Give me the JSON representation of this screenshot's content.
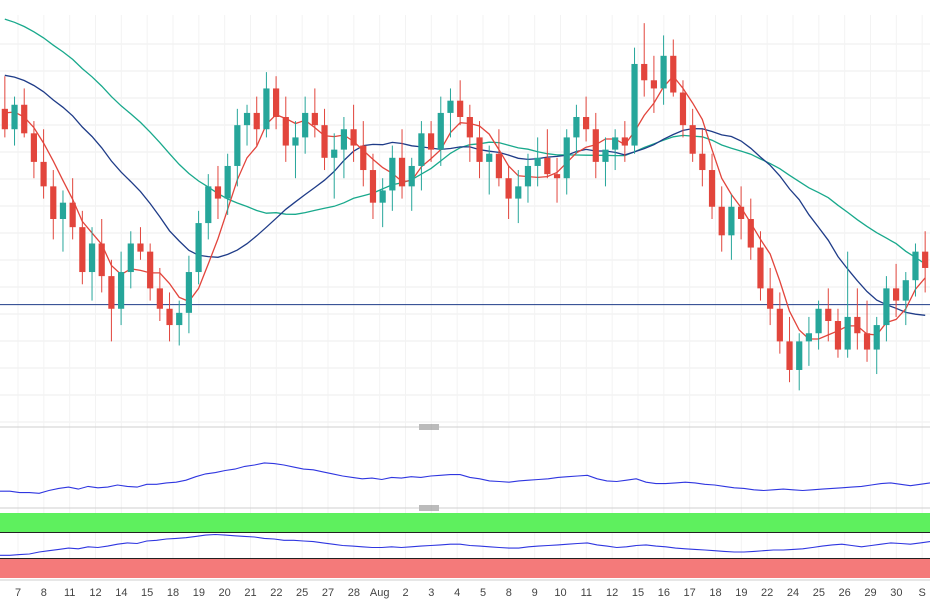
{
  "colors": {
    "up": "#26a69a",
    "down": "#e2453c",
    "sma_fast": "#e2453c",
    "sma_mid": "#1f3c88",
    "sma_slow": "#19a98c",
    "horizontal_level": "#1f3c88",
    "osc_line": "#2f36e0",
    "overbought_zone": "#5ef05e",
    "oversold_zone": "#f47a7a"
  },
  "chart_data": [
    {
      "type": "candlestick",
      "title": "",
      "xlabel": "",
      "ylabel": "",
      "x_tick_labels": [
        "7",
        "8",
        "11",
        "12",
        "14",
        "15",
        "18",
        "19",
        "20",
        "21",
        "22",
        "25",
        "27",
        "28",
        "Aug",
        "2",
        "3",
        "4",
        "5",
        "8",
        "9",
        "10",
        "11",
        "12",
        "15",
        "16",
        "17",
        "18",
        "19",
        "22",
        "24",
        "25",
        "26",
        "29",
        "30",
        "S"
      ],
      "ylim": [
        0,
        100
      ],
      "grid": true,
      "horizontal_level": 29,
      "ohlc": [
        [
          77,
          85,
          70,
          72
        ],
        [
          72,
          80,
          68,
          78
        ],
        [
          78,
          82,
          70,
          71
        ],
        [
          71,
          74,
          60,
          64
        ],
        [
          64,
          72,
          55,
          58
        ],
        [
          58,
          62,
          45,
          50
        ],
        [
          50,
          57,
          42,
          54
        ],
        [
          54,
          60,
          45,
          48
        ],
        [
          48,
          52,
          34,
          37
        ],
        [
          37,
          48,
          30,
          44
        ],
        [
          44,
          50,
          32,
          36
        ],
        [
          36,
          40,
          20,
          28
        ],
        [
          28,
          42,
          24,
          37
        ],
        [
          37,
          47,
          33,
          44
        ],
        [
          44,
          48,
          40,
          42
        ],
        [
          42,
          44,
          30,
          33
        ],
        [
          33,
          38,
          25,
          28
        ],
        [
          28,
          32,
          20,
          24
        ],
        [
          24,
          30,
          19,
          27
        ],
        [
          27,
          41,
          22,
          37
        ],
        [
          37,
          52,
          34,
          49
        ],
        [
          49,
          61,
          45,
          58
        ],
        [
          58,
          63,
          50,
          55
        ],
        [
          55,
          66,
          51,
          63
        ],
        [
          63,
          77,
          58,
          73
        ],
        [
          73,
          78,
          68,
          76
        ],
        [
          76,
          80,
          68,
          72
        ],
        [
          72,
          86,
          70,
          82
        ],
        [
          82,
          85,
          72,
          75
        ],
        [
          75,
          80,
          64,
          68
        ],
        [
          68,
          74,
          60,
          70
        ],
        [
          70,
          80,
          66,
          76
        ],
        [
          76,
          82,
          70,
          73
        ],
        [
          73,
          77,
          62,
          65
        ],
        [
          65,
          71,
          55,
          67
        ],
        [
          67,
          75,
          60,
          72
        ],
        [
          72,
          78,
          64,
          68
        ],
        [
          68,
          74,
          58,
          62
        ],
        [
          62,
          66,
          50,
          54
        ],
        [
          54,
          60,
          48,
          57
        ],
        [
          57,
          68,
          52,
          65
        ],
        [
          65,
          72,
          55,
          58
        ],
        [
          58,
          65,
          52,
          63
        ],
        [
          63,
          74,
          57,
          71
        ],
        [
          71,
          74,
          64,
          67
        ],
        [
          67,
          80,
          63,
          76
        ],
        [
          76,
          82,
          70,
          79
        ],
        [
          79,
          84,
          73,
          75
        ],
        [
          75,
          78,
          64,
          70
        ],
        [
          70,
          74,
          60,
          64
        ],
        [
          64,
          68,
          56,
          66
        ],
        [
          66,
          72,
          58,
          60
        ],
        [
          60,
          63,
          50,
          55
        ],
        [
          55,
          62,
          49,
          58
        ],
        [
          58,
          66,
          54,
          63
        ],
        [
          63,
          70,
          58,
          65
        ],
        [
          65,
          72,
          60,
          61
        ],
        [
          61,
          65,
          54,
          60
        ],
        [
          60,
          72,
          56,
          70
        ],
        [
          70,
          78,
          66,
          75
        ],
        [
          75,
          80,
          69,
          72
        ],
        [
          72,
          76,
          60,
          64
        ],
        [
          64,
          70,
          58,
          67
        ],
        [
          67,
          72,
          62,
          70
        ],
        [
          70,
          74,
          64,
          68
        ],
        [
          68,
          92,
          66,
          88
        ],
        [
          88,
          98,
          80,
          84
        ],
        [
          84,
          90,
          76,
          82
        ],
        [
          82,
          95,
          78,
          90
        ],
        [
          90,
          94,
          80,
          81
        ],
        [
          81,
          84,
          70,
          73
        ],
        [
          73,
          77,
          64,
          66
        ],
        [
          66,
          72,
          58,
          62
        ],
        [
          62,
          66,
          50,
          53
        ],
        [
          53,
          58,
          42,
          46
        ],
        [
          46,
          56,
          40,
          53
        ],
        [
          53,
          58,
          45,
          50
        ],
        [
          50,
          55,
          40,
          43
        ],
        [
          43,
          47,
          30,
          33
        ],
        [
          33,
          38,
          24,
          28
        ],
        [
          28,
          32,
          17,
          20
        ],
        [
          20,
          26,
          10,
          13
        ],
        [
          13,
          22,
          8,
          20
        ],
        [
          20,
          26,
          14,
          22
        ],
        [
          22,
          30,
          18,
          28
        ],
        [
          28,
          33,
          20,
          25
        ],
        [
          25,
          28,
          16,
          18
        ],
        [
          18,
          42,
          16,
          26
        ],
        [
          26,
          33,
          18,
          22
        ],
        [
          22,
          30,
          15,
          18
        ],
        [
          18,
          26,
          12,
          24
        ],
        [
          24,
          36,
          20,
          33
        ],
        [
          33,
          39,
          26,
          30
        ],
        [
          30,
          37,
          24,
          35
        ],
        [
          35,
          44,
          31,
          42
        ],
        [
          42,
          47,
          32,
          38
        ]
      ],
      "x_axis_dates_shown": "7 … 30 S (daily sessions, July → August)"
    },
    {
      "type": "line",
      "title": "",
      "series": [
        {
          "name": "",
          "values": [
            20,
            20,
            18,
            18,
            17,
            21,
            24,
            26,
            23,
            27,
            25,
            26,
            29,
            27,
            26,
            30,
            30,
            32,
            33,
            36,
            41,
            45,
            47,
            50,
            52,
            56,
            58,
            61,
            60,
            58,
            55,
            52,
            51,
            48,
            45,
            42,
            40,
            38,
            39,
            37,
            40,
            39,
            41,
            40,
            42,
            43,
            44,
            44,
            40,
            38,
            35,
            34,
            33,
            35,
            36,
            37,
            38,
            40,
            41,
            42,
            43,
            38,
            35,
            34,
            36,
            38,
            33,
            31,
            31,
            32,
            33,
            32,
            30,
            29,
            27,
            25,
            24,
            22,
            21,
            22,
            23,
            22,
            21,
            22,
            23,
            24,
            25,
            26,
            27,
            29,
            31,
            32,
            30,
            28,
            30,
            32
          ]
        }
      ]
    },
    {
      "type": "line",
      "title": "",
      "series": [
        {
          "name": "",
          "values": [
            35,
            35,
            36,
            37,
            40,
            42,
            44,
            46,
            45,
            48,
            47,
            49,
            52,
            54,
            53,
            57,
            58,
            60,
            61,
            62,
            64,
            66,
            67,
            66,
            65,
            64,
            63,
            61,
            60,
            58,
            58,
            57,
            56,
            54,
            52,
            50,
            49,
            48,
            47,
            47,
            48,
            47,
            48,
            49,
            50,
            51,
            52,
            52,
            50,
            49,
            48,
            47,
            46,
            46,
            48,
            49,
            50,
            51,
            52,
            53,
            54,
            51,
            49,
            47,
            48,
            50,
            51,
            49,
            48,
            46,
            45,
            44,
            43,
            42,
            41,
            40,
            40,
            41,
            42,
            43,
            43,
            44,
            45,
            47,
            49,
            51,
            52,
            50,
            48,
            50,
            52,
            54,
            53,
            52,
            54,
            56
          ]
        }
      ],
      "bands": {
        "overbought": [
          70,
          100
        ],
        "oversold": [
          0,
          30
        ]
      }
    }
  ]
}
